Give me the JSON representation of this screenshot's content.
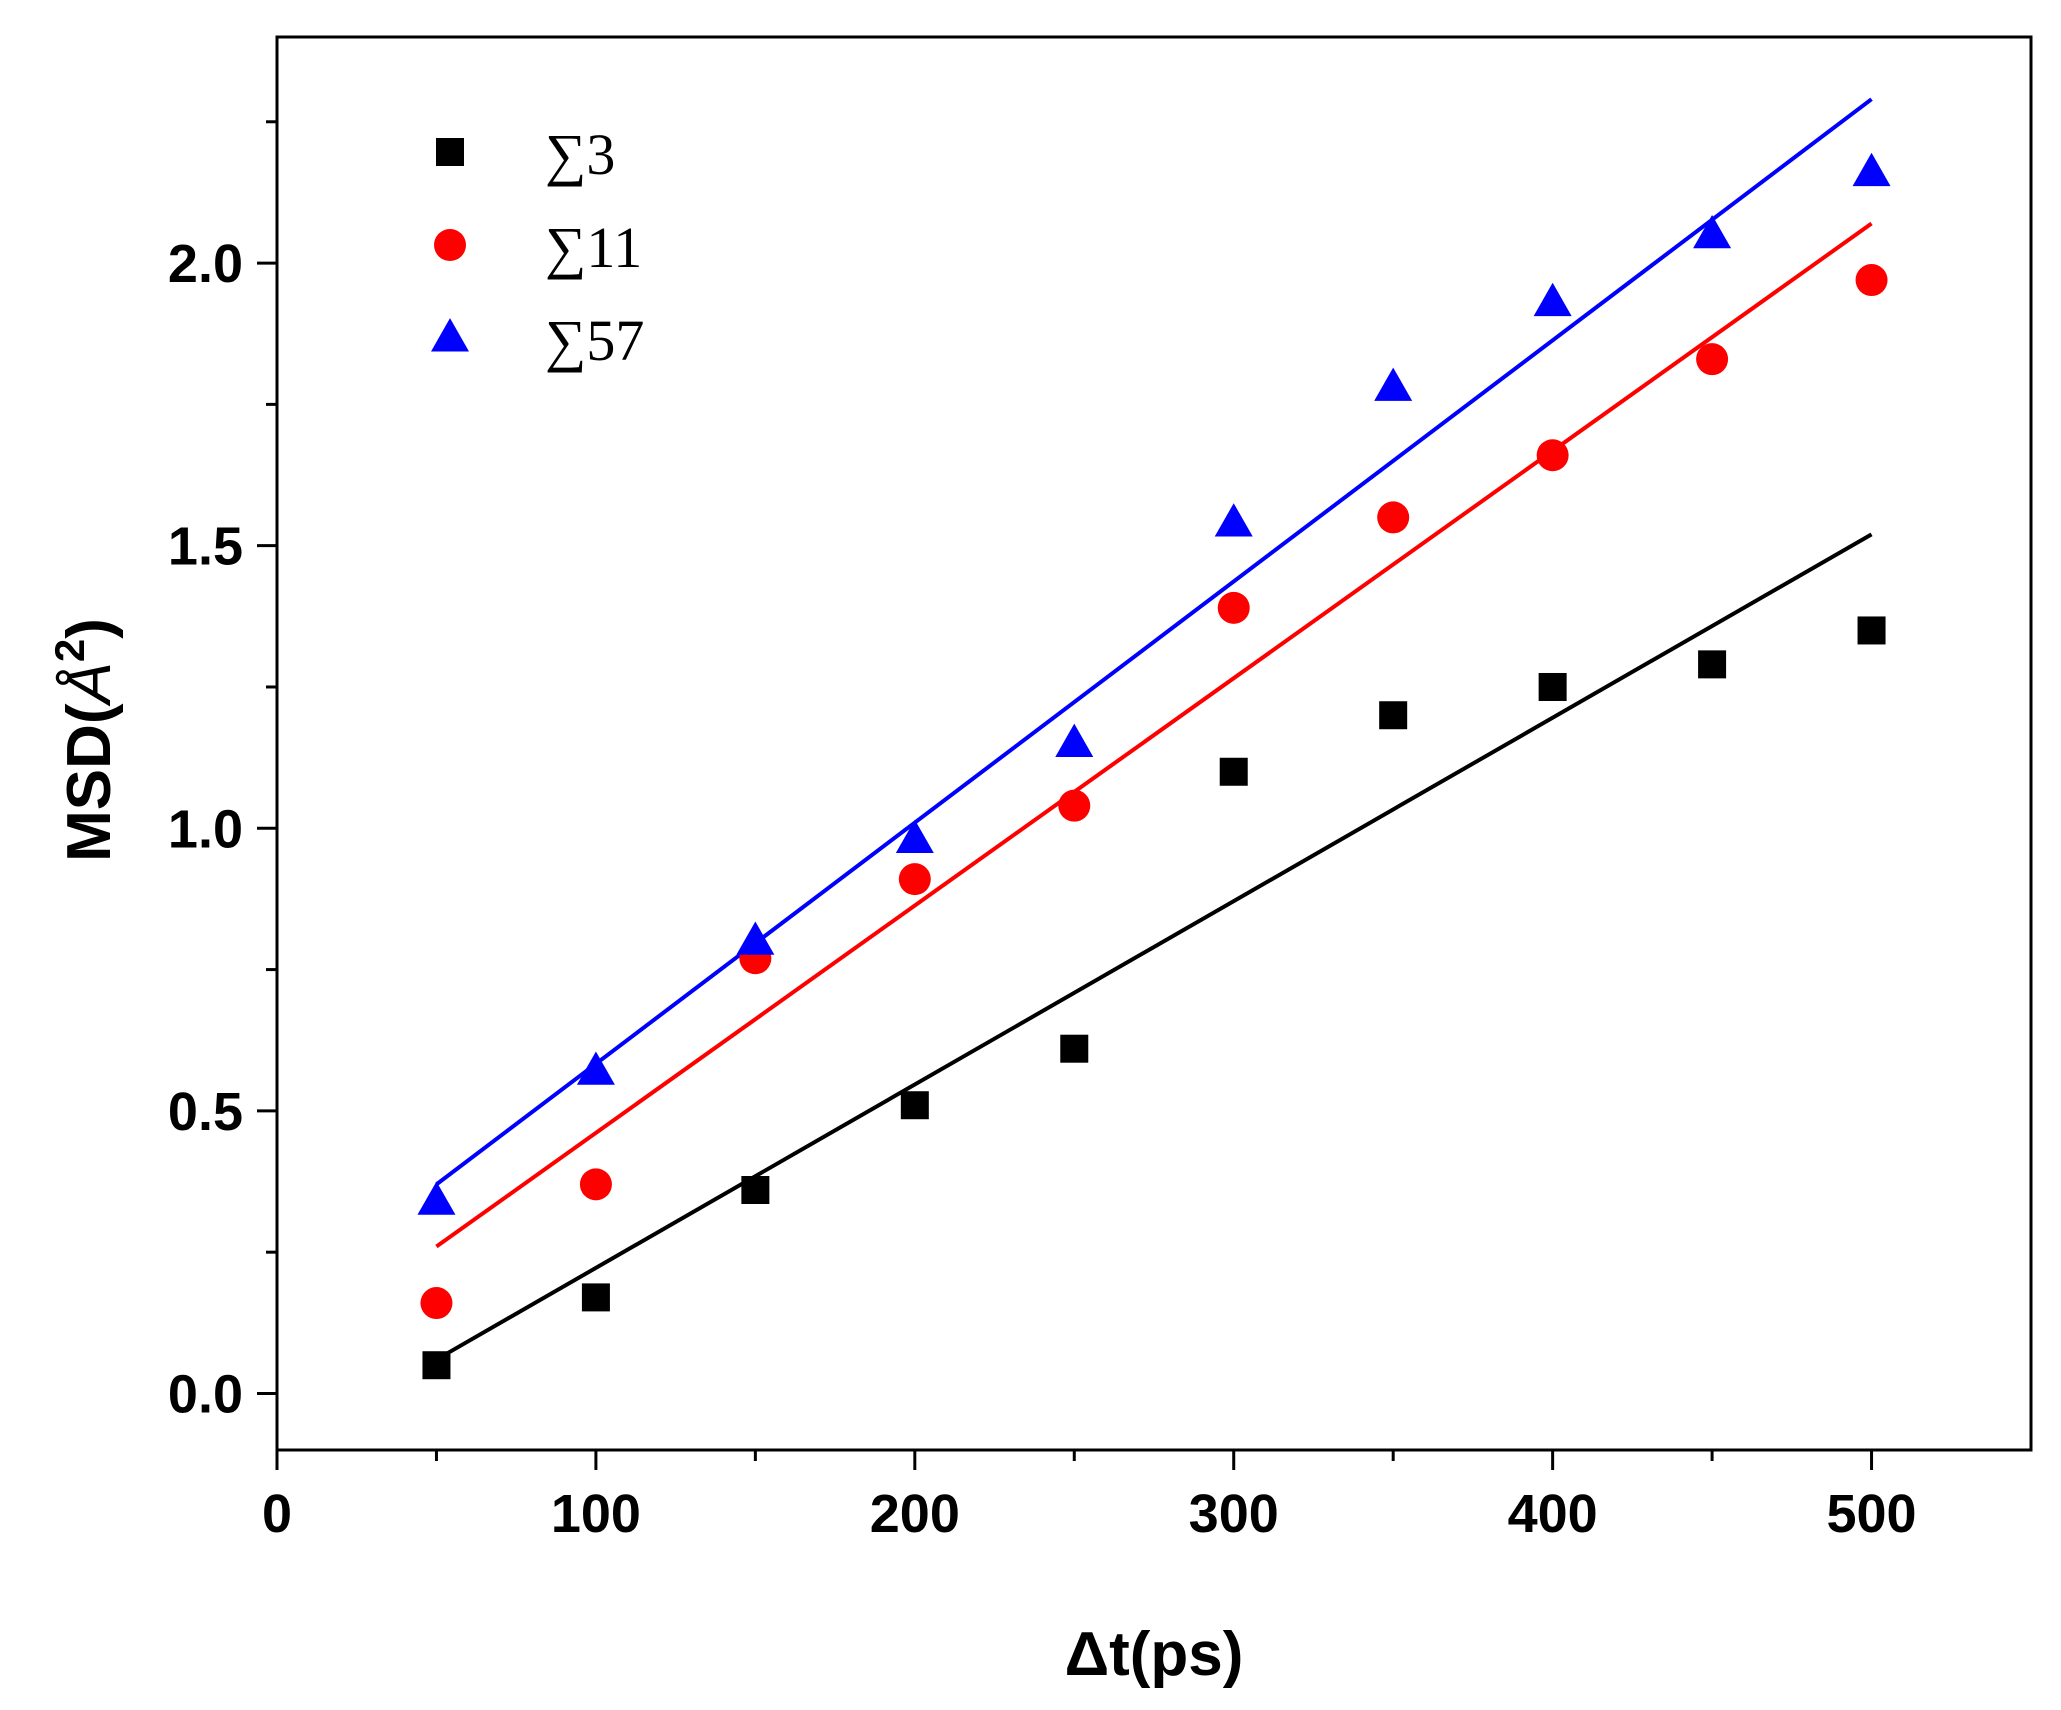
{
  "chart_data": {
    "type": "scatter",
    "title": "",
    "xlabel": "Δt(ps)",
    "ylabel_main": "MSD(",
    "ylabel_unit": "Å",
    "ylabel_exp": "2",
    "ylabel_close": ")",
    "xlim": [
      0,
      550
    ],
    "ylim": [
      -0.1,
      2.4
    ],
    "xticks": [
      0,
      100,
      200,
      300,
      400,
      500
    ],
    "xtick_labels": [
      "0",
      "100",
      "200",
      "300",
      "400",
      "500"
    ],
    "yticks": [
      0.0,
      0.5,
      1.0,
      1.5,
      2.0
    ],
    "ytick_labels": [
      "0.0",
      "0.5",
      "1.0",
      "1.5",
      "2.0"
    ],
    "legend_position": "top-left",
    "series": [
      {
        "name": "∑3",
        "marker": "square",
        "color": "#000000",
        "x": [
          50,
          100,
          150,
          200,
          250,
          300,
          350,
          400,
          450,
          500
        ],
        "values": [
          0.05,
          0.17,
          0.36,
          0.51,
          0.61,
          1.1,
          1.2,
          1.25,
          1.29,
          1.35
        ],
        "fit": {
          "x": [
            50,
            500
          ],
          "y": [
            0.06,
            1.52
          ]
        }
      },
      {
        "name": "∑11",
        "marker": "circle",
        "color": "#ff0000",
        "x": [
          50,
          100,
          150,
          200,
          250,
          300,
          350,
          400,
          450,
          500
        ],
        "values": [
          0.16,
          0.37,
          0.77,
          0.91,
          1.04,
          1.39,
          1.55,
          1.66,
          1.83,
          1.97
        ],
        "fit": {
          "x": [
            50,
            500
          ],
          "y": [
            0.26,
            2.07
          ]
        }
      },
      {
        "name": "∑57",
        "marker": "triangle",
        "color": "#0000ff",
        "x": [
          50,
          100,
          150,
          200,
          250,
          300,
          350,
          400,
          450,
          500
        ],
        "values": [
          0.34,
          0.57,
          0.8,
          0.98,
          1.15,
          1.54,
          1.78,
          1.93,
          2.05,
          2.16
        ],
        "fit": {
          "x": [
            50,
            500
          ],
          "y": [
            0.37,
            2.29
          ]
        }
      }
    ]
  }
}
